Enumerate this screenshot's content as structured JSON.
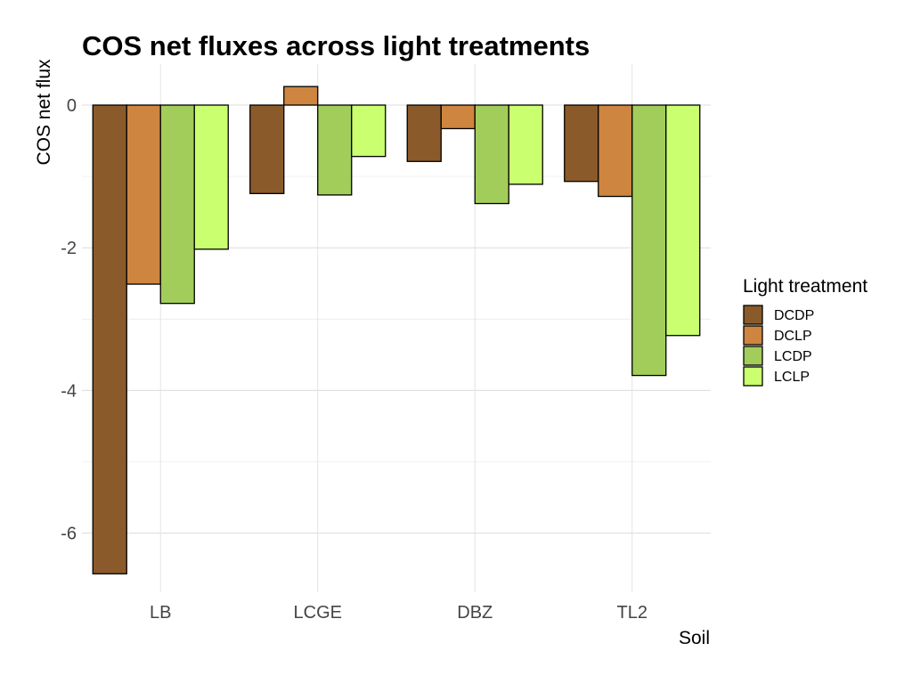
{
  "chart_data": {
    "type": "bar",
    "title": "COS net fluxes across light treatments",
    "xlabel": "Soil",
    "ylabel": "COS net flux",
    "categories": [
      "LB",
      "LCGE",
      "DBZ",
      "TL2"
    ],
    "series": [
      {
        "name": "DCDP",
        "color": "#8B5A2B",
        "values": [
          -6.57,
          -1.24,
          -0.79,
          -1.07
        ]
      },
      {
        "name": "DCLP",
        "color": "#CD853F",
        "values": [
          -2.51,
          0.26,
          -0.33,
          -1.28
        ]
      },
      {
        "name": "LCDP",
        "color": "#A2CD5A",
        "values": [
          -2.78,
          -1.26,
          -1.38,
          -3.79
        ]
      },
      {
        "name": "LCLP",
        "color": "#CAFF70",
        "values": [
          -2.02,
          -0.72,
          -1.11,
          -3.23
        ]
      }
    ],
    "ylim": [
      -6.9,
      0.6
    ],
    "y_ticks": [
      0,
      -2,
      -4,
      -6
    ],
    "y_tick_labels": [
      "0",
      "-2",
      "-4",
      "-6"
    ],
    "grid": true,
    "legend": {
      "title": "Light treatment",
      "placement": "right"
    }
  }
}
